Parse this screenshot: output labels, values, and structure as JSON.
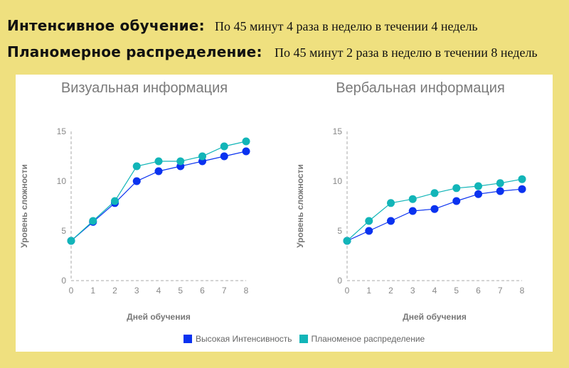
{
  "header": {
    "intensive": {
      "label": "Интенсивное обучение:",
      "description": "По 45 минут 4 раза в неделю в течении 4 недель"
    },
    "planned": {
      "label": "Планомерное распределение:",
      "description": "По 45 минут 2 раза в неделю в течении 8 недель"
    }
  },
  "legend": {
    "items": [
      {
        "label": "Высокая Интенсивность",
        "color": "#0a32f0"
      },
      {
        "label": "Планоменое распределение",
        "color": "#12b5b8"
      }
    ]
  },
  "colors": {
    "background": "#efe07f",
    "panel": "#ffffff",
    "high_intensity": "#0a32f0",
    "planned": "#12b5b8",
    "axis_text": "#888888"
  },
  "chart_data": [
    {
      "type": "line",
      "title": "Визуальная информация",
      "xlabel": "Дней обучения",
      "ylabel": "Уровень сложности",
      "x": [
        0,
        1,
        2,
        3,
        4,
        5,
        6,
        7,
        8
      ],
      "yticks": [
        0,
        5,
        10,
        15
      ],
      "ylim": [
        0,
        15
      ],
      "xlim": [
        0,
        8
      ],
      "grid": false,
      "legend_position": "bottom",
      "series": [
        {
          "name": "Высокая Интенсивность",
          "values": [
            4,
            5.9,
            7.8,
            10,
            11,
            11.5,
            12,
            12.5,
            13
          ]
        },
        {
          "name": "Планоменое распределение",
          "values": [
            4,
            6,
            8,
            11.5,
            12,
            12,
            12.5,
            13.5,
            14
          ]
        }
      ]
    },
    {
      "type": "line",
      "title": "Вербальная информация",
      "xlabel": "Дней обучения",
      "ylabel": "Уровень сложности",
      "x": [
        0,
        1,
        2,
        3,
        4,
        5,
        6,
        7,
        8
      ],
      "yticks": [
        0,
        5,
        10,
        15
      ],
      "ylim": [
        0,
        15
      ],
      "xlim": [
        0,
        8
      ],
      "grid": false,
      "legend_position": "bottom",
      "series": [
        {
          "name": "Высокая Интенсивность",
          "values": [
            4,
            5,
            6,
            7,
            7.2,
            8,
            8.7,
            9,
            9.2
          ]
        },
        {
          "name": "Планоменое распределение",
          "values": [
            4,
            6,
            7.8,
            8.2,
            8.8,
            9.3,
            9.5,
            9.8,
            10.2
          ]
        }
      ]
    }
  ]
}
